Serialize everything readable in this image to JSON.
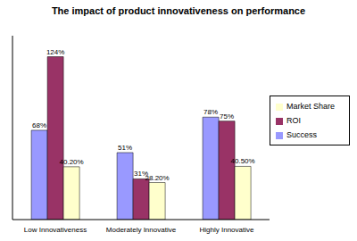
{
  "chart_data": {
    "type": "bar",
    "title": "The impact of product innovativeness on performance",
    "categories": [
      "Low Innovativeness",
      "Moderately Innovative",
      "Highly Innovative"
    ],
    "series": [
      {
        "name": "Success",
        "color": "#9999ff",
        "values": [
          68,
          51,
          78
        ],
        "value_labels": [
          "68%",
          "51%",
          "78%"
        ]
      },
      {
        "name": "ROI",
        "color": "#993366",
        "values": [
          124,
          31,
          75
        ],
        "value_labels": [
          "124%",
          "31%",
          "75%"
        ]
      },
      {
        "name": "Market Share",
        "color": "#ffffcc",
        "values": [
          40.2,
          28.2,
          40.5
        ],
        "value_labels": [
          "40.20%",
          "28.20%",
          "40.50%"
        ]
      }
    ],
    "ylim": [
      0,
      140
    ],
    "grid": false,
    "legend": "right",
    "data_labels": true,
    "tick_labels": "x"
  }
}
